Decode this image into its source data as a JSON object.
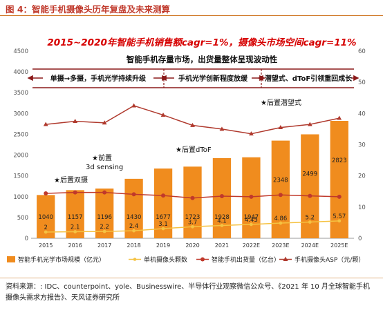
{
  "figure": {
    "title": "图 4：智能手机摄像头历年复盘及未来测算",
    "source": "资料来源：: IDC、counterpoint、yole、Businesswire、半导体行业观察微信公众号、《2021 年 10 月全球智能手机摄像头需求方报告》、天风证券研究所"
  },
  "annotations": {
    "headline": "2015~2020年智能手机销售额cagr=1%，摄像头市场空间cagr=11%",
    "subheadline": "智能手机存量市场，出货量整体呈现波动性",
    "phase1": "单摄→多摄，手机光学持续升级",
    "phase2": "手机光学创新程度放缓",
    "phase3": "潜望式、dToF引领重回成长",
    "event_dual": "★后置双摄",
    "event_front_line1": "★前置",
    "event_front_line2": "3d sensing",
    "event_dtof": "★后置dToF",
    "event_periscope": "★后置潜望式"
  },
  "chart_data": {
    "type": "bar",
    "categories": [
      "2015",
      "2016",
      "2017",
      "2018",
      "2019",
      "2020",
      "2021",
      "2022E",
      "2023E",
      "2024E",
      "2025E"
    ],
    "series": [
      {
        "name": "智能手机光学市场规模（亿元）",
        "type": "bar",
        "axis": "left",
        "color": "#f08c1e",
        "values": [
          1040,
          1157,
          1196,
          1430,
          1677,
          1723,
          1928,
          1947,
          2348,
          2499,
          2823
        ],
        "labels": [
          "1040",
          "1157",
          "1196",
          "1430",
          "1677",
          "1723",
          "1928",
          "1947",
          "2348",
          "2499",
          "2823"
        ]
      },
      {
        "name": "单机摄像头颗数",
        "type": "line",
        "axis": "right",
        "color": "#f5c242",
        "values": [
          2,
          2.1,
          2.2,
          2.4,
          3.1,
          3.7,
          4.1,
          4.45,
          4.86,
          5.2,
          5.57
        ],
        "labels": [
          "2",
          "2.1",
          "2.2",
          "2.4",
          "3.1",
          "3.7",
          "4.1",
          "4.45",
          "4.86",
          "5.2",
          "5.57"
        ]
      },
      {
        "name": "智能手机出货量（亿台）",
        "type": "line",
        "axis": "right",
        "color": "#c0392b",
        "values": [
          14.4,
          14.7,
          14.7,
          14.1,
          13.7,
          12.9,
          13.5,
          13.3,
          13.9,
          13.6,
          13.3
        ]
      },
      {
        "name": "手机摄像头ASP（元/颗）",
        "type": "line",
        "axis": "right",
        "color": "#b03a2e",
        "values": [
          36.5,
          37.5,
          37,
          42.5,
          39.5,
          36.2,
          35,
          33.5,
          35.5,
          36.5,
          38.5
        ]
      }
    ],
    "y_left": {
      "min": 0,
      "max": 4500,
      "ticks": [
        0,
        500,
        1000,
        1500,
        2000,
        2500,
        3000,
        3500,
        4000,
        4500
      ]
    },
    "y_right": {
      "min": 0,
      "max": 60,
      "ticks": [
        0,
        10,
        20,
        30,
        40,
        50,
        60
      ]
    },
    "grid": false,
    "legend": "bottom"
  },
  "colors": {
    "bar": "#f08c1e",
    "accent": "#c0392b",
    "phase_bar": "#8b1a1a"
  }
}
